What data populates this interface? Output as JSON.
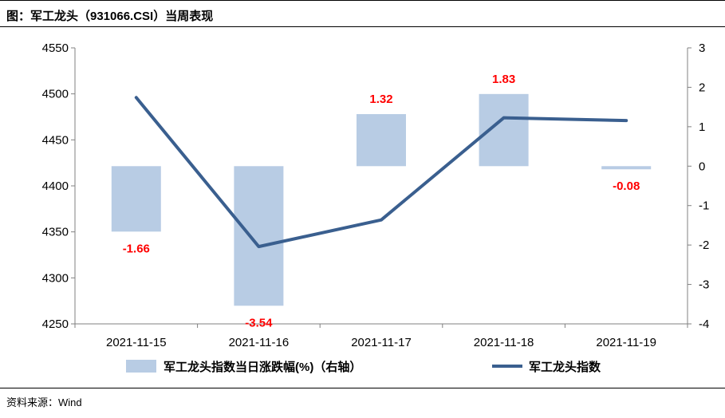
{
  "title": "图：军工龙头（931066.CSI）当周表现",
  "source": "资料来源：Wind",
  "colors": {
    "bar": "#b8cce4",
    "line": "#3a5f8f",
    "label": "#ff0000"
  },
  "chart_data": {
    "type": "bar+line",
    "categories": [
      "2021-11-15",
      "2021-11-16",
      "2021-11-17",
      "2021-11-18",
      "2021-11-19"
    ],
    "series": [
      {
        "name": "军工龙头指数当日涨跌幅(%)（右轴）",
        "type": "bar",
        "axis": "right",
        "values": [
          -1.66,
          -3.54,
          1.32,
          1.83,
          -0.08
        ],
        "labels": [
          "-1.66",
          "-3.54",
          "1.32",
          "1.83",
          "-0.08"
        ]
      },
      {
        "name": "军工龙头指数",
        "type": "line",
        "axis": "left",
        "values": [
          4496,
          4334,
          4363,
          4474,
          4471
        ]
      }
    ],
    "y_left": {
      "min": 4250,
      "max": 4550,
      "ticks": [
        "4250",
        "4300",
        "4350",
        "4400",
        "4450",
        "4500",
        "4550"
      ]
    },
    "y_right": {
      "min": -4,
      "max": 3,
      "ticks": [
        "-4",
        "-3",
        "-2",
        "-1",
        "0",
        "1",
        "2",
        "3"
      ]
    },
    "grid": false,
    "legend": "bottom"
  }
}
